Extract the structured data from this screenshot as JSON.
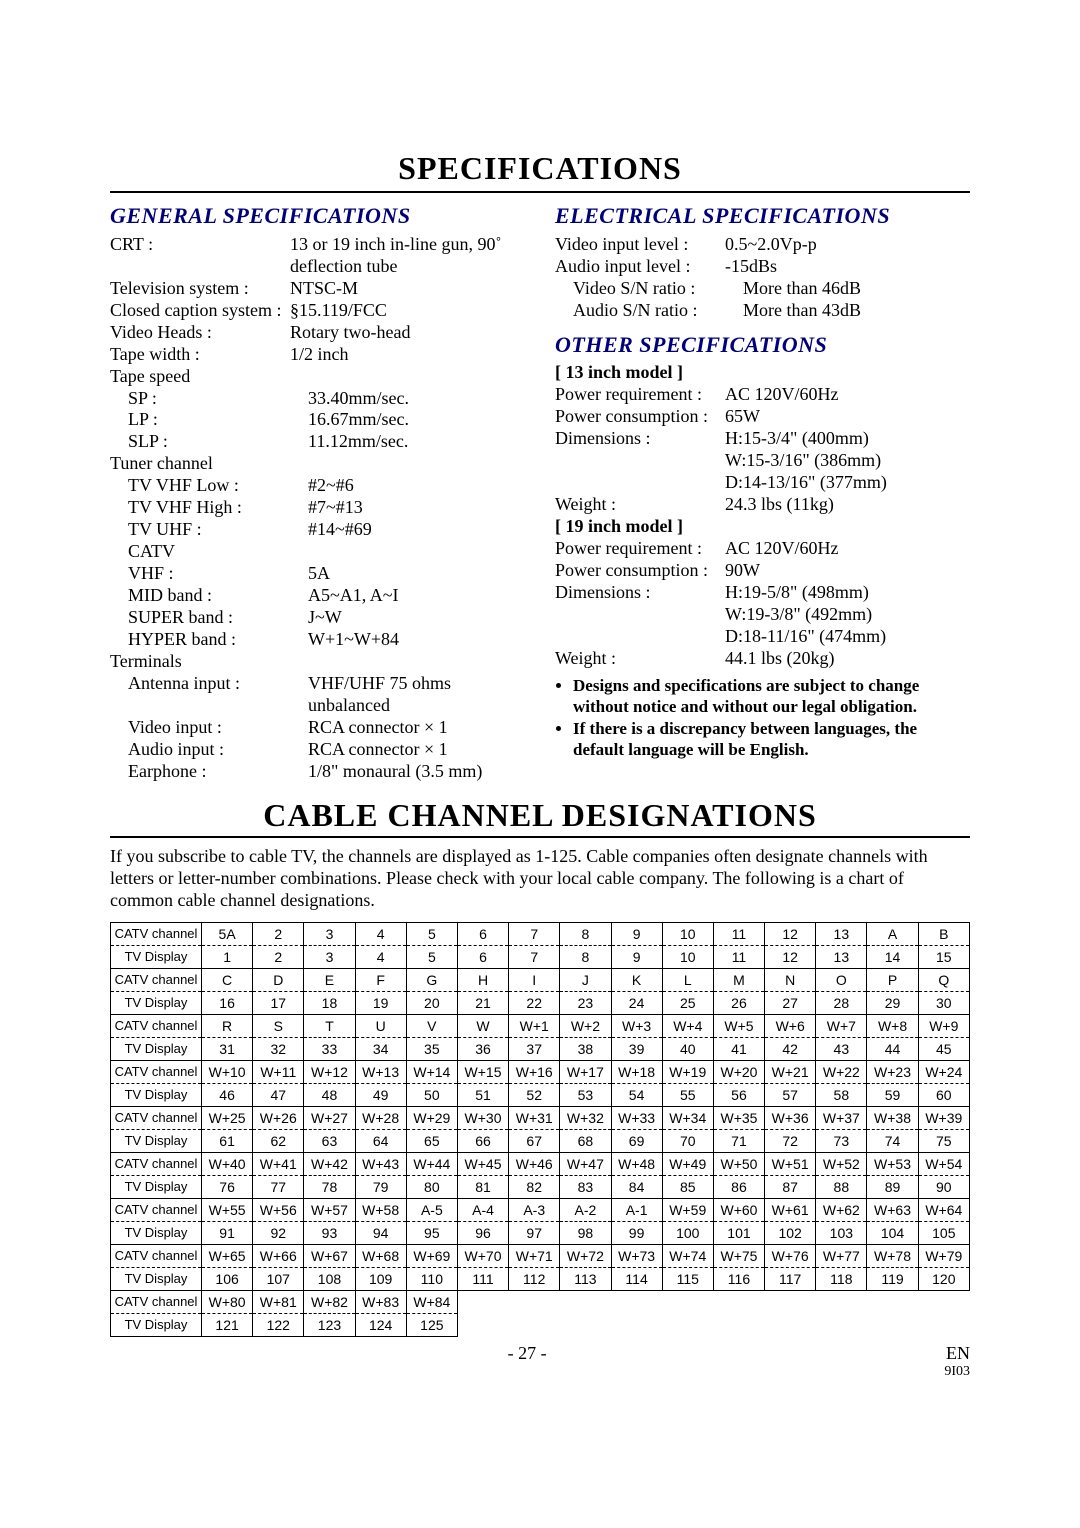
{
  "title1": "SPECIFICATIONS",
  "title2": "CABLE CHANNEL DESIGNATIONS",
  "sections": {
    "general": "GENERAL SPECIFICATIONS",
    "electrical": "ELECTRICAL SPECIFICATIONS",
    "other": "OTHER SPECIFICATIONS"
  },
  "general": [
    {
      "l": "CRT :",
      "v": "13 or 19 inch in-line gun, 90˚ deflection tube"
    },
    {
      "l": "Television system :",
      "v": "NTSC-M"
    },
    {
      "l": "Closed caption system :",
      "v": "§15.119/FCC"
    },
    {
      "l": "Video Heads :",
      "v": "Rotary two-head"
    },
    {
      "l": "Tape width :",
      "v": "1/2 inch"
    },
    {
      "l": "Tape speed",
      "v": ""
    },
    {
      "l": "SP :",
      "v": "33.40mm/sec.",
      "i": true
    },
    {
      "l": "LP :",
      "v": "16.67mm/sec.",
      "i": true
    },
    {
      "l": "SLP :",
      "v": "11.12mm/sec.",
      "i": true
    },
    {
      "l": "Tuner channel",
      "v": ""
    },
    {
      "l": "TV VHF Low :",
      "v": "#2~#6",
      "i": true
    },
    {
      "l": "TV VHF High :",
      "v": "#7~#13",
      "i": true
    },
    {
      "l": "TV UHF :",
      "v": "#14~#69",
      "i": true
    },
    {
      "l": "CATV",
      "v": "",
      "i": true
    },
    {
      "l": "VHF :",
      "v": "5A",
      "i": true
    },
    {
      "l": "MID band :",
      "v": "A5~A1, A~I",
      "i": true
    },
    {
      "l": "SUPER band :",
      "v": "J~W",
      "i": true
    },
    {
      "l": "HYPER band :",
      "v": "W+1~W+84",
      "i": true
    },
    {
      "l": "Terminals",
      "v": ""
    },
    {
      "l": "Antenna input :",
      "v": "VHF/UHF 75 ohms unbalanced",
      "i": true
    },
    {
      "l": "Video input :",
      "v": "RCA connector × 1",
      "i": true
    },
    {
      "l": "Audio input :",
      "v": "RCA connector × 1",
      "i": true
    },
    {
      "l": "Earphone :",
      "v": "1/8\" monaural (3.5 mm)",
      "i": true
    }
  ],
  "electrical": [
    {
      "l": "Video input level :",
      "v": "0.5~2.0Vp-p"
    },
    {
      "l": "Audio input level :",
      "v": "-15dBs"
    },
    {
      "l": "Video S/N ratio :",
      "v": "More than 46dB",
      "i": true
    },
    {
      "l": "Audio S/N ratio :",
      "v": "More than 43dB",
      "i": true
    }
  ],
  "other": {
    "m13head": "[ 13 inch model ]",
    "m13": [
      {
        "l": "Power requirement :",
        "v": "AC 120V/60Hz"
      },
      {
        "l": "Power consumption :",
        "v": "65W"
      },
      {
        "l": "Dimensions :",
        "v": "H:15-3/4\" (400mm)"
      },
      {
        "l": "",
        "v": "W:15-3/16\" (386mm)"
      },
      {
        "l": "",
        "v": "D:14-13/16\" (377mm)"
      },
      {
        "l": "Weight :",
        "v": "24.3 lbs (11kg)"
      }
    ],
    "m19head": "[ 19 inch model ]",
    "m19": [
      {
        "l": "Power requirement :",
        "v": "AC 120V/60Hz"
      },
      {
        "l": "Power consumption :",
        "v": "90W"
      },
      {
        "l": "Dimensions :",
        "v": "H:19-5/8\" (498mm)"
      },
      {
        "l": "",
        "v": "W:19-3/8\" (492mm)"
      },
      {
        "l": "",
        "v": "D:18-11/16\" (474mm)"
      },
      {
        "l": "Weight :",
        "v": "44.1 lbs (20kg)"
      }
    ]
  },
  "notes": [
    "Designs and specifications are subject to change without notice and without our legal obligation.",
    "If there is a discrepancy between languages, the default language will be English."
  ],
  "intro": "If you subscribe to cable TV, the channels are displayed as 1-125. Cable companies often designate channels with letters or letter-number combinations. Please check with your local cable company. The following is a chart of common cable channel designations.",
  "rowlabels": {
    "catv": "CATV channel",
    "tv": "TV Display"
  },
  "table": [
    {
      "c": [
        "5A",
        "2",
        "3",
        "4",
        "5",
        "6",
        "7",
        "8",
        "9",
        "10",
        "11",
        "12",
        "13",
        "A",
        "B"
      ],
      "t": [
        "1",
        "2",
        "3",
        "4",
        "5",
        "6",
        "7",
        "8",
        "9",
        "10",
        "11",
        "12",
        "13",
        "14",
        "15"
      ]
    },
    {
      "c": [
        "C",
        "D",
        "E",
        "F",
        "G",
        "H",
        "I",
        "J",
        "K",
        "L",
        "M",
        "N",
        "O",
        "P",
        "Q"
      ],
      "t": [
        "16",
        "17",
        "18",
        "19",
        "20",
        "21",
        "22",
        "23",
        "24",
        "25",
        "26",
        "27",
        "28",
        "29",
        "30"
      ]
    },
    {
      "c": [
        "R",
        "S",
        "T",
        "U",
        "V",
        "W",
        "W+1",
        "W+2",
        "W+3",
        "W+4",
        "W+5",
        "W+6",
        "W+7",
        "W+8",
        "W+9"
      ],
      "t": [
        "31",
        "32",
        "33",
        "34",
        "35",
        "36",
        "37",
        "38",
        "39",
        "40",
        "41",
        "42",
        "43",
        "44",
        "45"
      ]
    },
    {
      "c": [
        "W+10",
        "W+11",
        "W+12",
        "W+13",
        "W+14",
        "W+15",
        "W+16",
        "W+17",
        "W+18",
        "W+19",
        "W+20",
        "W+21",
        "W+22",
        "W+23",
        "W+24"
      ],
      "t": [
        "46",
        "47",
        "48",
        "49",
        "50",
        "51",
        "52",
        "53",
        "54",
        "55",
        "56",
        "57",
        "58",
        "59",
        "60"
      ]
    },
    {
      "c": [
        "W+25",
        "W+26",
        "W+27",
        "W+28",
        "W+29",
        "W+30",
        "W+31",
        "W+32",
        "W+33",
        "W+34",
        "W+35",
        "W+36",
        "W+37",
        "W+38",
        "W+39"
      ],
      "t": [
        "61",
        "62",
        "63",
        "64",
        "65",
        "66",
        "67",
        "68",
        "69",
        "70",
        "71",
        "72",
        "73",
        "74",
        "75"
      ]
    },
    {
      "c": [
        "W+40",
        "W+41",
        "W+42",
        "W+43",
        "W+44",
        "W+45",
        "W+46",
        "W+47",
        "W+48",
        "W+49",
        "W+50",
        "W+51",
        "W+52",
        "W+53",
        "W+54"
      ],
      "t": [
        "76",
        "77",
        "78",
        "79",
        "80",
        "81",
        "82",
        "83",
        "84",
        "85",
        "86",
        "87",
        "88",
        "89",
        "90"
      ]
    },
    {
      "c": [
        "W+55",
        "W+56",
        "W+57",
        "W+58",
        "A-5",
        "A-4",
        "A-3",
        "A-2",
        "A-1",
        "W+59",
        "W+60",
        "W+61",
        "W+62",
        "W+63",
        "W+64"
      ],
      "t": [
        "91",
        "92",
        "93",
        "94",
        "95",
        "96",
        "97",
        "98",
        "99",
        "100",
        "101",
        "102",
        "103",
        "104",
        "105"
      ]
    },
    {
      "c": [
        "W+65",
        "W+66",
        "W+67",
        "W+68",
        "W+69",
        "W+70",
        "W+71",
        "W+72",
        "W+73",
        "W+74",
        "W+75",
        "W+76",
        "W+77",
        "W+78",
        "W+79"
      ],
      "t": [
        "106",
        "107",
        "108",
        "109",
        "110",
        "111",
        "112",
        "113",
        "114",
        "115",
        "116",
        "117",
        "118",
        "119",
        "120"
      ]
    },
    {
      "c": [
        "W+80",
        "W+81",
        "W+82",
        "W+83",
        "W+84"
      ],
      "t": [
        "121",
        "122",
        "123",
        "124",
        "125"
      ]
    }
  ],
  "footer": {
    "page": "- 27 -",
    "lang": "EN",
    "code": "9I03"
  }
}
